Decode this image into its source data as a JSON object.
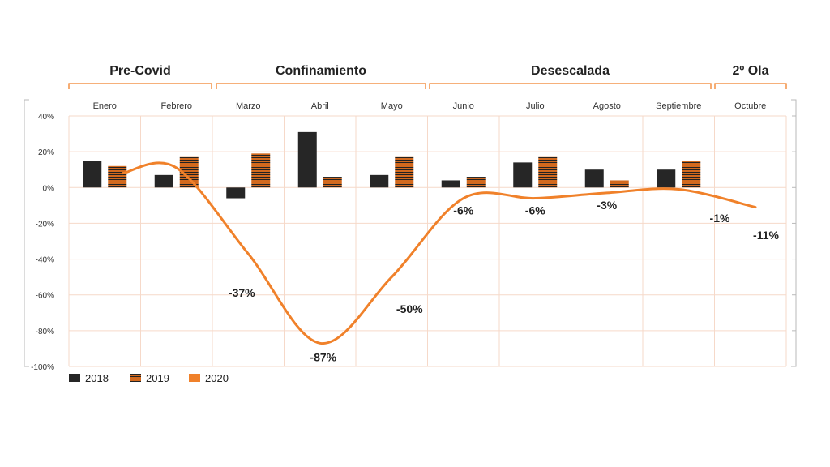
{
  "colors": {
    "series_2018": "#262626",
    "series_2019": "#d2691e",
    "series_2019_stripe": "#222222",
    "series_2020": "#f0812a",
    "phase_bracket": "#f0812a",
    "grid": "#f6d9c9"
  },
  "chart_data": {
    "type": "bar",
    "categories": [
      "Enero",
      "Febrero",
      "Marzo",
      "Abril",
      "Mayo",
      "Junio",
      "Julio",
      "Agosto",
      "Septiembre",
      "Octubre"
    ],
    "phases": [
      {
        "label": "Pre-Covid",
        "months": [
          0,
          1
        ]
      },
      {
        "label": "Confinamiento",
        "months": [
          2,
          4
        ]
      },
      {
        "label": "Desescalada",
        "months": [
          5,
          8
        ]
      },
      {
        "label": "2º Ola",
        "months": [
          9,
          9
        ]
      }
    ],
    "series": [
      {
        "name": "2018",
        "type": "bar",
        "values": [
          15,
          7,
          -6,
          31,
          7,
          4,
          14,
          10,
          10,
          null
        ]
      },
      {
        "name": "2019",
        "type": "bar",
        "values": [
          12,
          17,
          19,
          6,
          17,
          6,
          17,
          4,
          15,
          null
        ]
      },
      {
        "name": "2020",
        "type": "line",
        "values": [
          8,
          11,
          -37,
          -87,
          -50,
          -6,
          -6,
          -3,
          -1,
          -11
        ]
      }
    ],
    "data_labels": [
      {
        "month": 2,
        "text": "-37%"
      },
      {
        "month": 3,
        "text": "-87%"
      },
      {
        "month": 4,
        "text": "-50%"
      },
      {
        "month": 5,
        "text": "-6%"
      },
      {
        "month": 6,
        "text": "-6%"
      },
      {
        "month": 7,
        "text": "-3%"
      },
      {
        "month": 8,
        "text": "-1%"
      },
      {
        "month": 9,
        "text": "-11%"
      }
    ],
    "y_ticks": [
      "40%",
      "20%",
      "0%",
      "-20%",
      "-40%",
      "-60%",
      "-80%",
      "-100%"
    ],
    "ylim": [
      -100,
      40
    ],
    "grid": true,
    "legend_position": "bottom-left"
  }
}
